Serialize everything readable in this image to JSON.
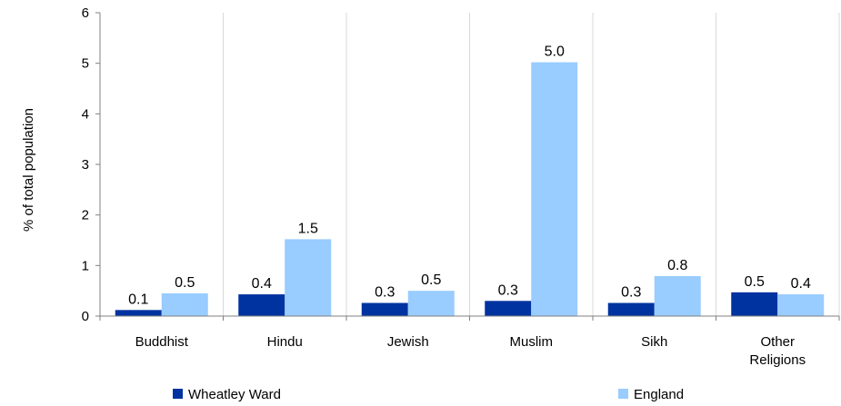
{
  "chart_data": {
    "type": "bar",
    "title": "",
    "xlabel": "",
    "ylabel": "% of total population",
    "ylim": [
      0,
      6
    ],
    "yticks": [
      "0",
      "1",
      "2",
      "3",
      "4",
      "5",
      "6"
    ],
    "categories": [
      [
        "Buddhist"
      ],
      [
        "Hindu"
      ],
      [
        "Jewish"
      ],
      [
        "Muslim"
      ],
      [
        "Sikh"
      ],
      [
        "Other",
        "Religions"
      ]
    ],
    "series": [
      {
        "name": "Wheatley Ward",
        "color": "#0033a0",
        "values": [
          0.12,
          0.43,
          0.26,
          0.3,
          0.26,
          0.47
        ],
        "labels": [
          "0.1",
          "0.4",
          "0.3",
          "0.3",
          "0.3",
          "0.5"
        ]
      },
      {
        "name": "England",
        "color": "#99ccff",
        "values": [
          0.45,
          1.52,
          0.5,
          5.02,
          0.79,
          0.43
        ],
        "labels": [
          "0.5",
          "1.5",
          "0.5",
          "5.0",
          "0.8",
          "0.4"
        ]
      }
    ],
    "grid": "vertical category separators",
    "legend_position": "bottom"
  }
}
